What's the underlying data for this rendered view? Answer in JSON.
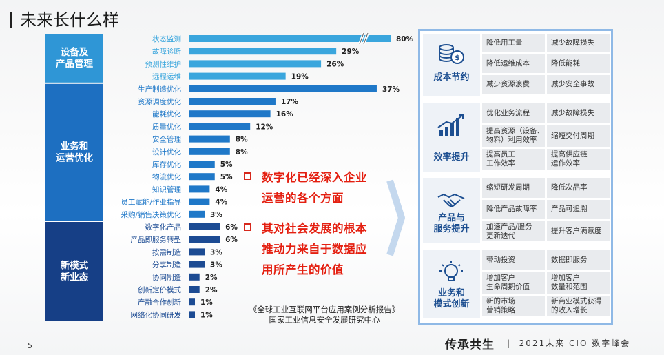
{
  "page": {
    "title": "未来长什么样",
    "page_number": "5"
  },
  "chart_data": {
    "type": "bar",
    "orientation": "horizontal",
    "value_unit": "%",
    "groups": [
      {
        "label": "设备及\n产品管理",
        "color": "#3aa6dd",
        "items": [
          {
            "label": "状态监测",
            "value": 80,
            "broken_axis": true
          },
          {
            "label": "故障诊断",
            "value": 29
          },
          {
            "label": "预测性维护",
            "value": 26
          },
          {
            "label": "远程运维",
            "value": 19
          }
        ]
      },
      {
        "label": "业务和\n运营优化",
        "color": "#1f78c8",
        "items": [
          {
            "label": "生产制造优化",
            "value": 37
          },
          {
            "label": "资源调度优化",
            "value": 17
          },
          {
            "label": "能耗优化",
            "value": 16
          },
          {
            "label": "质量优化",
            "value": 12
          },
          {
            "label": "安全管理",
            "value": 8
          },
          {
            "label": "设计优化",
            "value": 8
          },
          {
            "label": "库存优化",
            "value": 5
          },
          {
            "label": "物流优化",
            "value": 5
          },
          {
            "label": "知识管理",
            "value": 4
          },
          {
            "label": "员工赋能/作业指导",
            "value": 4
          },
          {
            "label": "采购/销售决策优化",
            "value": 3
          }
        ]
      },
      {
        "label": "新模式\n新业态",
        "color": "#1c4b93",
        "items": [
          {
            "label": "数字化产品",
            "value": 6
          },
          {
            "label": "产品即服务转型",
            "value": 6
          },
          {
            "label": "按需制造",
            "value": 3
          },
          {
            "label": "分享制造",
            "value": 3
          },
          {
            "label": "协同制造",
            "value": 2
          },
          {
            "label": "创新定价模式",
            "value": 2
          },
          {
            "label": "产融合作创新",
            "value": 1
          },
          {
            "label": "网络化协同研发",
            "value": 1
          }
        ]
      }
    ]
  },
  "bullets": [
    {
      "lines": [
        "数字化已经深入企业",
        "运营的各个方面"
      ]
    },
    {
      "lines": [
        "其对社会发展的根本",
        "推动力来自于数据应",
        "用所产生的价值"
      ]
    }
  ],
  "source": {
    "line1": "《全球工业互联网平台应用案例分析报告》",
    "line2": "国家工业信息安全发展研究中心"
  },
  "benefits": [
    {
      "label": "成本节约",
      "icon": "coins-icon",
      "cells": [
        "降低用工量",
        "减少故障损失",
        "降低运维成本",
        "降低能耗",
        "减少资源浪费",
        "减少安全事故"
      ]
    },
    {
      "label": "效率提升",
      "icon": "growth-chart-icon",
      "cells": [
        "优化业务流程",
        "减少故障损失",
        "提高资源（设备、\n物料）利用效率",
        "缩短交付周期",
        "提高员工\n工作效率",
        "提高供应链\n运作效率"
      ]
    },
    {
      "label": "产品与\n服务提升",
      "icon": "handshake-icon",
      "cells": [
        "缩短研发周期",
        "降低次品率",
        "降低产品故障率",
        "产品可追溯",
        "加速产品/服务\n更新迭代",
        "提升客户满意度"
      ]
    },
    {
      "label": "业务和\n模式创新",
      "icon": "lightbulb-icon",
      "cells": [
        "带动投资",
        "数据即服务",
        "增加客户\n生命周期价值",
        "增加客户\n数量和范围",
        "新的市场\n营销策略",
        "新商业模式获得\n的收入增长"
      ]
    }
  ],
  "footer": {
    "logo": "传承共生",
    "event": "2021未来 CIO 数字峰会"
  },
  "colors": {
    "accent_red": "#e41f10",
    "frame_blue": "#8fb9e6",
    "label_blue": "#1d4f91"
  }
}
